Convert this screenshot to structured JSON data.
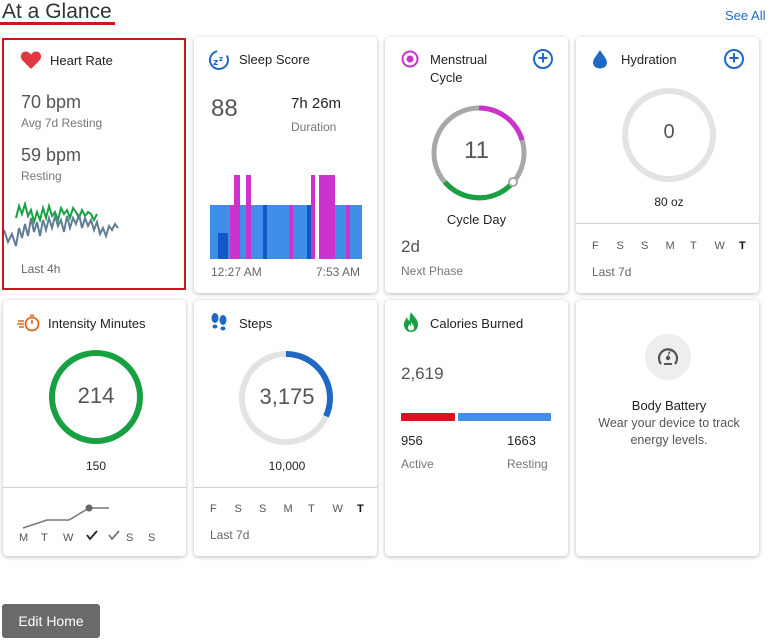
{
  "header": {
    "title": "At a Glance",
    "see_all": "See All"
  },
  "cards": {
    "heart_rate": {
      "title": "Heart Rate",
      "avg_value": "70 bpm",
      "avg_label": "Avg 7d Resting",
      "resting_value": "59 bpm",
      "resting_label": "Resting",
      "footer": "Last 4h"
    },
    "sleep": {
      "title": "Sleep Score",
      "score": "88",
      "duration": "7h 26m",
      "duration_label": "Duration",
      "start_time": "12:27 AM",
      "end_time": "7:53 AM"
    },
    "menstrual": {
      "title_line1": "Menstrual",
      "title_line2": "Cycle",
      "day_value": "11",
      "day_label": "Cycle Day",
      "next_value": "2d",
      "next_label": "Next Phase"
    },
    "hydration": {
      "title": "Hydration",
      "value": "0",
      "goal": "80 oz",
      "days": [
        "F",
        "S",
        "S",
        "M",
        "T",
        "W",
        "T"
      ],
      "footer": "Last 7d"
    },
    "intensity": {
      "title": "Intensity Minutes",
      "value": "214",
      "goal": "150",
      "days": [
        "M",
        "T",
        "W",
        "",
        "",
        "S",
        "S"
      ]
    },
    "steps": {
      "title": "Steps",
      "value": "3,175",
      "goal": "10,000",
      "progress_fraction": 0.3175,
      "days": [
        "F",
        "S",
        "S",
        "M",
        "T",
        "W",
        "T"
      ],
      "footer": "Last 7d"
    },
    "calories": {
      "title": "Calories Burned",
      "total": "2,619",
      "active_value": "956",
      "active_label": "Active",
      "resting_value": "1663",
      "resting_label": "Resting"
    },
    "body_battery": {
      "title": "Body Battery",
      "message": "Wear your device to track energy levels."
    }
  },
  "footer": {
    "edit_home": "Edit Home"
  },
  "colors": {
    "accent_red": "#d0161d",
    "link_blue": "#1f68c3",
    "sleep_deep": "#1358c6",
    "sleep_light": "#3f8fe8",
    "sleep_rem": "#cc33cc",
    "green": "#17a142",
    "magenta": "#cc33cc",
    "gray_ring": "#e3e3e3"
  }
}
